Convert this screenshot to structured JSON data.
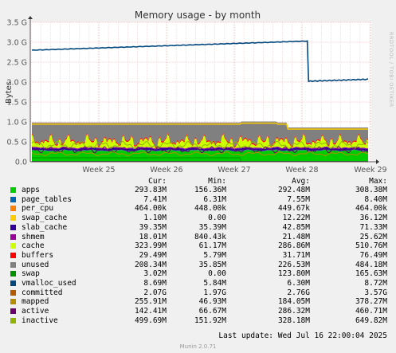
{
  "chart_data": {
    "type": "area",
    "title": "Memory usage - by month",
    "ylabel": "Bytes",
    "ylim": [
      0,
      3.5
    ],
    "y_ticks": [
      "0.0",
      "0.5 G",
      "1.0 G",
      "1.5 G",
      "2.0 G",
      "2.5 G",
      "3.0 G",
      "3.5 G"
    ],
    "x_ticks": [
      "Week 25",
      "Week 26",
      "Week 27",
      "Week 28",
      "Week 29"
    ],
    "grid": true,
    "columns": [
      "Cur:",
      "Min:",
      "Avg:",
      "Max:"
    ],
    "series": [
      {
        "name": "apps",
        "color": "#00cc00",
        "cur": "293.83M",
        "min": "156.36M",
        "avg": "292.48M",
        "max": "308.38M"
      },
      {
        "name": "page_tables",
        "color": "#0066b3",
        "cur": "7.41M",
        "min": "6.31M",
        "avg": "7.55M",
        "max": "8.40M"
      },
      {
        "name": "per_cpu",
        "color": "#ff8000",
        "cur": "464.00k",
        "min": "448.00k",
        "avg": "449.67k",
        "max": "464.00k"
      },
      {
        "name": "swap_cache",
        "color": "#ffcc00",
        "cur": "1.10M",
        "min": "0.00",
        "avg": "12.22M",
        "max": "36.12M"
      },
      {
        "name": "slab_cache",
        "color": "#330099",
        "cur": "39.35M",
        "min": "35.39M",
        "avg": "42.85M",
        "max": "71.33M"
      },
      {
        "name": "shmem",
        "color": "#990099",
        "cur": "18.01M",
        "min": "840.43k",
        "avg": "21.48M",
        "max": "25.62M"
      },
      {
        "name": "cache",
        "color": "#ccff00",
        "cur": "323.99M",
        "min": "61.17M",
        "avg": "286.86M",
        "max": "510.76M"
      },
      {
        "name": "buffers",
        "color": "#ff0000",
        "cur": "29.49M",
        "min": "5.79M",
        "avg": "31.71M",
        "max": "76.49M"
      },
      {
        "name": "unused",
        "color": "#808080",
        "cur": "208.34M",
        "min": "35.85M",
        "avg": "226.53M",
        "max": "484.18M"
      },
      {
        "name": "swap",
        "color": "#008f00",
        "cur": "3.02M",
        "min": "0.00",
        "avg": "123.80M",
        "max": "165.63M"
      },
      {
        "name": "vmalloc_used",
        "color": "#00487d",
        "cur": "8.69M",
        "min": "5.84M",
        "avg": "6.30M",
        "max": "8.72M"
      },
      {
        "name": "committed",
        "color": "#b35a00",
        "cur": "2.07G",
        "min": "1.97G",
        "avg": "2.76G",
        "max": "3.57G"
      },
      {
        "name": "mapped",
        "color": "#b38f00",
        "cur": "255.91M",
        "min": "46.93M",
        "avg": "184.05M",
        "max": "378.27M"
      },
      {
        "name": "active",
        "color": "#6b006b",
        "cur": "142.41M",
        "min": "66.67M",
        "avg": "286.32M",
        "max": "460.71M"
      },
      {
        "name": "inactive",
        "color": "#8fb300",
        "cur": "499.69M",
        "min": "151.92M",
        "avg": "328.18M",
        "max": "649.82M"
      }
    ],
    "approx_levels_gb": {
      "committed_before_week28": [
        2.8,
        3.03
      ],
      "committed_after_week28": [
        2.02,
        2.07
      ],
      "stack_top": 0.99
    }
  },
  "footer": {
    "last_update": "Last update:  Wed Jul 16 22:00:04 2025",
    "munin": "Munin 2.0.71",
    "rrdtool": "RRDTOOL / TOBI OETIKER"
  }
}
